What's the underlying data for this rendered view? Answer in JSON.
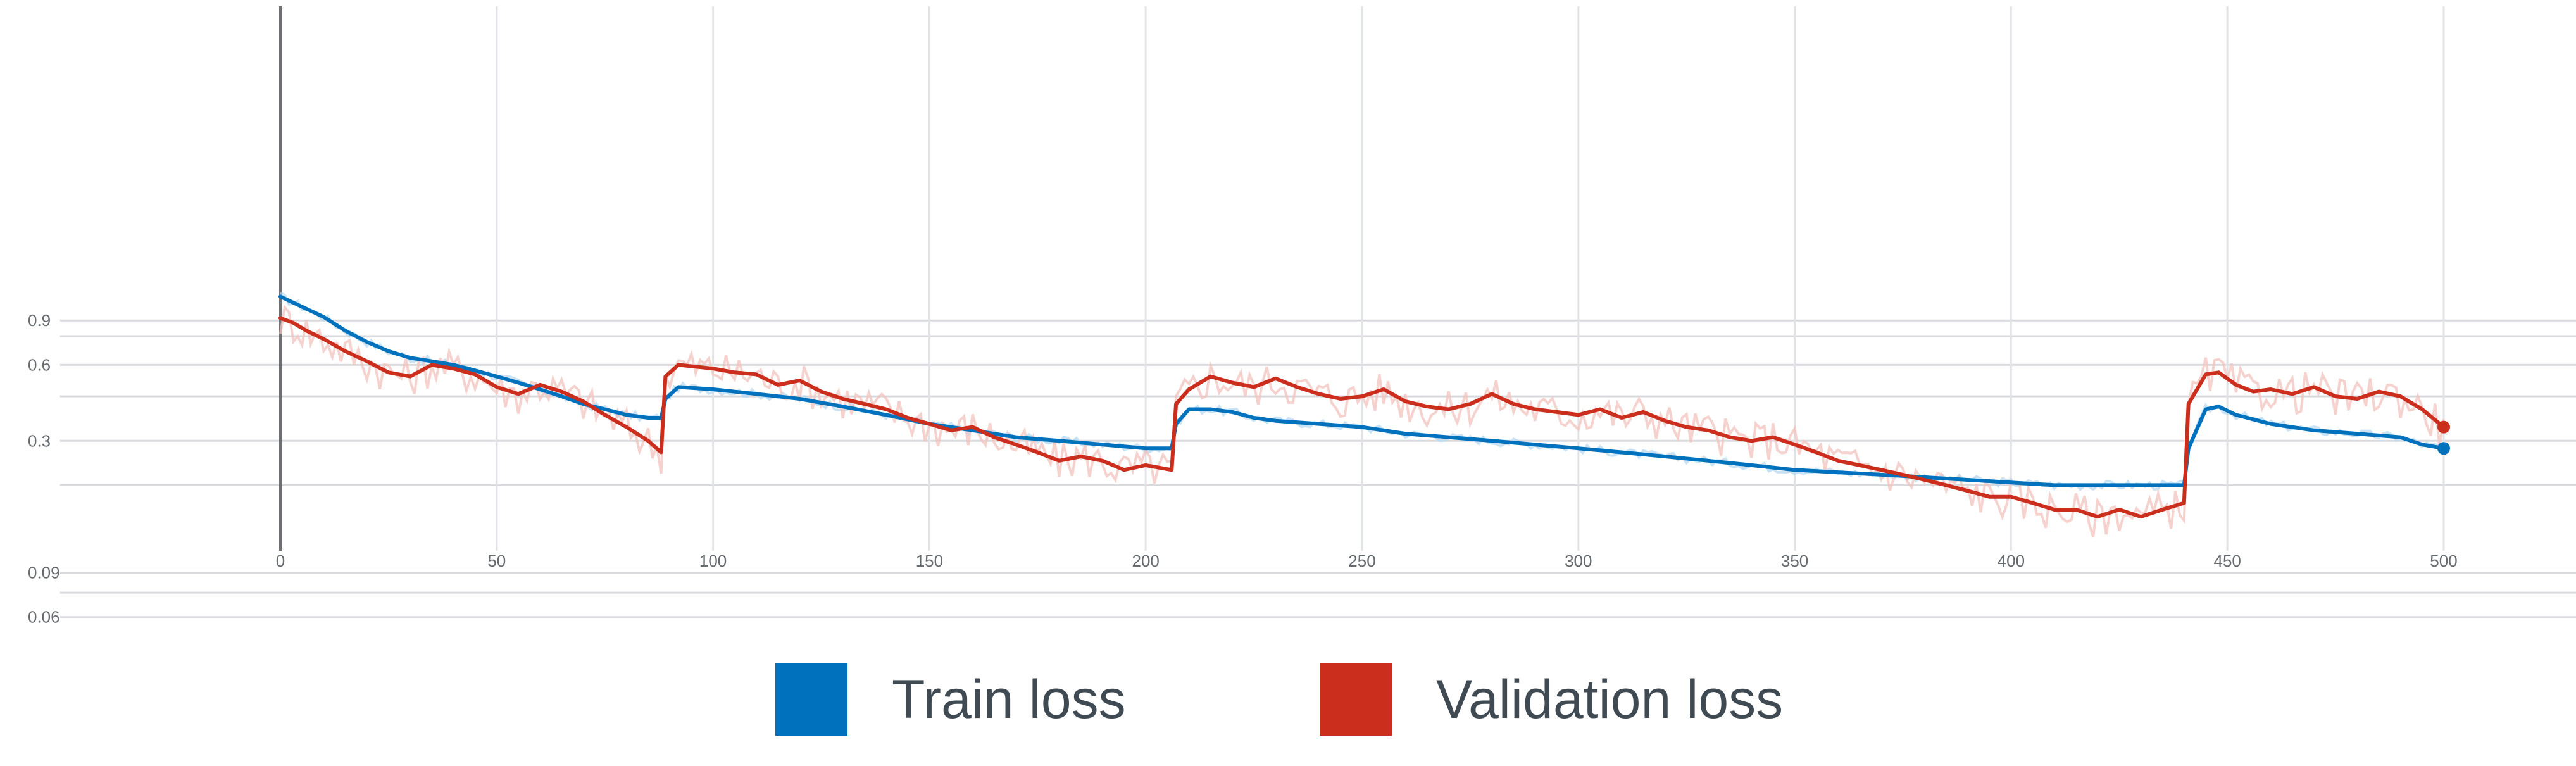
{
  "chart_data": {
    "type": "line",
    "title": "",
    "xlabel": "",
    "ylabel": "",
    "x_ticks": [
      "0",
      "50",
      "100",
      "150",
      "200",
      "250",
      "300",
      "350",
      "400",
      "450",
      "500"
    ],
    "y_ticks": [
      "0.9",
      "0.6",
      "0.3",
      "0.09",
      "0.06",
      "0.03"
    ],
    "xlim": [
      0,
      500
    ],
    "grid": true,
    "legend_position": "bottom-center",
    "series": [
      {
        "name": "Train loss",
        "color": "#0072bd",
        "points": [
          [
            0,
            1.12
          ],
          [
            5,
            1.02
          ],
          [
            10,
            0.93
          ],
          [
            15,
            0.82
          ],
          [
            20,
            0.74
          ],
          [
            25,
            0.68
          ],
          [
            30,
            0.64
          ],
          [
            35,
            0.62
          ],
          [
            40,
            0.6
          ],
          [
            45,
            0.57
          ],
          [
            50,
            0.54
          ],
          [
            55,
            0.51
          ],
          [
            60,
            0.48
          ],
          [
            65,
            0.45
          ],
          [
            70,
            0.42
          ],
          [
            75,
            0.4
          ],
          [
            80,
            0.38
          ],
          [
            85,
            0.37
          ],
          [
            88,
            0.37
          ],
          [
            89,
            0.44
          ],
          [
            92,
            0.49
          ],
          [
            100,
            0.48
          ],
          [
            110,
            0.46
          ],
          [
            120,
            0.44
          ],
          [
            130,
            0.41
          ],
          [
            140,
            0.38
          ],
          [
            150,
            0.35
          ],
          [
            160,
            0.33
          ],
          [
            170,
            0.31
          ],
          [
            180,
            0.3
          ],
          [
            190,
            0.29
          ],
          [
            200,
            0.28
          ],
          [
            206,
            0.28
          ],
          [
            207,
            0.35
          ],
          [
            210,
            0.4
          ],
          [
            215,
            0.4
          ],
          [
            220,
            0.39
          ],
          [
            225,
            0.37
          ],
          [
            230,
            0.36
          ],
          [
            240,
            0.35
          ],
          [
            250,
            0.34
          ],
          [
            260,
            0.32
          ],
          [
            270,
            0.31
          ],
          [
            280,
            0.3
          ],
          [
            290,
            0.29
          ],
          [
            300,
            0.28
          ],
          [
            310,
            0.27
          ],
          [
            320,
            0.26
          ],
          [
            330,
            0.25
          ],
          [
            340,
            0.24
          ],
          [
            350,
            0.23
          ],
          [
            360,
            0.225
          ],
          [
            370,
            0.22
          ],
          [
            380,
            0.215
          ],
          [
            390,
            0.21
          ],
          [
            400,
            0.205
          ],
          [
            410,
            0.2
          ],
          [
            420,
            0.2
          ],
          [
            430,
            0.2
          ],
          [
            440,
            0.2
          ],
          [
            441,
            0.28
          ],
          [
            445,
            0.4
          ],
          [
            448,
            0.41
          ],
          [
            452,
            0.38
          ],
          [
            460,
            0.35
          ],
          [
            470,
            0.33
          ],
          [
            480,
            0.32
          ],
          [
            490,
            0.31
          ],
          [
            495,
            0.29
          ],
          [
            500,
            0.28
          ]
        ]
      },
      {
        "name": "Validation loss",
        "color": "#cc2e1e",
        "points": [
          [
            0,
            0.92
          ],
          [
            3,
            0.88
          ],
          [
            6,
            0.82
          ],
          [
            10,
            0.76
          ],
          [
            15,
            0.68
          ],
          [
            20,
            0.62
          ],
          [
            25,
            0.56
          ],
          [
            30,
            0.54
          ],
          [
            35,
            0.6
          ],
          [
            40,
            0.58
          ],
          [
            45,
            0.55
          ],
          [
            50,
            0.49
          ],
          [
            55,
            0.46
          ],
          [
            60,
            0.5
          ],
          [
            65,
            0.47
          ],
          [
            70,
            0.43
          ],
          [
            75,
            0.38
          ],
          [
            80,
            0.34
          ],
          [
            85,
            0.3
          ],
          [
            88,
            0.27
          ],
          [
            89,
            0.54
          ],
          [
            92,
            0.6
          ],
          [
            100,
            0.58
          ],
          [
            105,
            0.56
          ],
          [
            110,
            0.55
          ],
          [
            115,
            0.5
          ],
          [
            120,
            0.52
          ],
          [
            125,
            0.47
          ],
          [
            130,
            0.44
          ],
          [
            135,
            0.42
          ],
          [
            140,
            0.4
          ],
          [
            145,
            0.37
          ],
          [
            150,
            0.35
          ],
          [
            155,
            0.33
          ],
          [
            160,
            0.34
          ],
          [
            165,
            0.31
          ],
          [
            170,
            0.29
          ],
          [
            175,
            0.27
          ],
          [
            180,
            0.25
          ],
          [
            185,
            0.26
          ],
          [
            190,
            0.25
          ],
          [
            195,
            0.23
          ],
          [
            200,
            0.24
          ],
          [
            206,
            0.23
          ],
          [
            207,
            0.42
          ],
          [
            210,
            0.48
          ],
          [
            215,
            0.54
          ],
          [
            220,
            0.51
          ],
          [
            225,
            0.49
          ],
          [
            230,
            0.53
          ],
          [
            235,
            0.49
          ],
          [
            240,
            0.46
          ],
          [
            245,
            0.44
          ],
          [
            250,
            0.45
          ],
          [
            255,
            0.48
          ],
          [
            260,
            0.43
          ],
          [
            265,
            0.41
          ],
          [
            270,
            0.4
          ],
          [
            275,
            0.42
          ],
          [
            280,
            0.46
          ],
          [
            285,
            0.42
          ],
          [
            290,
            0.4
          ],
          [
            295,
            0.39
          ],
          [
            300,
            0.38
          ],
          [
            305,
            0.4
          ],
          [
            310,
            0.37
          ],
          [
            315,
            0.39
          ],
          [
            320,
            0.36
          ],
          [
            325,
            0.34
          ],
          [
            330,
            0.33
          ],
          [
            335,
            0.31
          ],
          [
            340,
            0.3
          ],
          [
            345,
            0.31
          ],
          [
            350,
            0.29
          ],
          [
            355,
            0.27
          ],
          [
            360,
            0.25
          ],
          [
            365,
            0.24
          ],
          [
            370,
            0.23
          ],
          [
            375,
            0.22
          ],
          [
            380,
            0.21
          ],
          [
            385,
            0.2
          ],
          [
            390,
            0.19
          ],
          [
            395,
            0.18
          ],
          [
            400,
            0.18
          ],
          [
            405,
            0.17
          ],
          [
            410,
            0.16
          ],
          [
            415,
            0.16
          ],
          [
            420,
            0.15
          ],
          [
            425,
            0.16
          ],
          [
            430,
            0.15
          ],
          [
            435,
            0.16
          ],
          [
            440,
            0.17
          ],
          [
            441,
            0.42
          ],
          [
            445,
            0.55
          ],
          [
            448,
            0.56
          ],
          [
            452,
            0.5
          ],
          [
            456,
            0.47
          ],
          [
            460,
            0.48
          ],
          [
            465,
            0.46
          ],
          [
            470,
            0.49
          ],
          [
            475,
            0.45
          ],
          [
            480,
            0.44
          ],
          [
            485,
            0.47
          ],
          [
            490,
            0.45
          ],
          [
            495,
            0.4
          ],
          [
            500,
            0.34
          ]
        ]
      }
    ]
  }
}
